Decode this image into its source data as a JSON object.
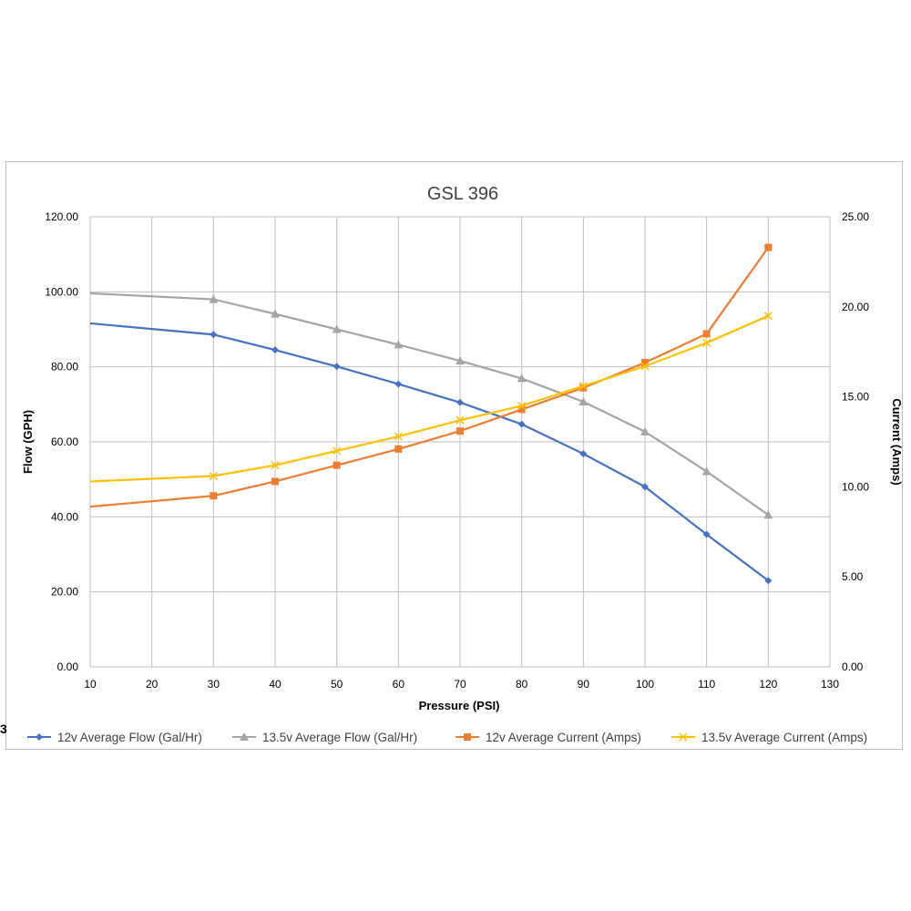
{
  "stray_text": "3",
  "chart_data": {
    "type": "line",
    "title": "GSL 396",
    "xlabel": "Pressure (PSI)",
    "ylabel": "Flow (GPH)",
    "y2label": "Current (Amps)",
    "xlim": [
      10,
      130
    ],
    "ylim": [
      0,
      120
    ],
    "y2lim": [
      0,
      25
    ],
    "x_ticks": [
      "10",
      "20",
      "30",
      "40",
      "50",
      "60",
      "70",
      "80",
      "90",
      "100",
      "110",
      "120",
      "130"
    ],
    "y_ticks": [
      "0.00",
      "20.00",
      "40.00",
      "60.00",
      "80.00",
      "100.00",
      "120.00"
    ],
    "y2_ticks": [
      "0.00",
      "5.00",
      "10.00",
      "15.00",
      "20.00",
      "25.00"
    ],
    "grid": true,
    "legend_position": "bottom",
    "series": [
      {
        "name": "12v Average Flow (Gal/Hr)",
        "axis": "left",
        "color": "#4472c4",
        "marker": "diamond",
        "x": [
          10,
          30,
          40,
          50,
          60,
          70,
          80,
          90,
          100,
          110,
          120
        ],
        "y": [
          91.6,
          88.6,
          84.5,
          80.1,
          75.4,
          70.5,
          64.7,
          56.8,
          48.0,
          35.3,
          23.0
        ]
      },
      {
        "name": "13.5v Average Flow (Gal/Hr)",
        "axis": "left",
        "color": "#a5a5a5",
        "marker": "triangle",
        "x": [
          10,
          30,
          40,
          50,
          60,
          70,
          80,
          90,
          100,
          110,
          120
        ],
        "y": [
          99.6,
          98.0,
          94.1,
          90.0,
          85.9,
          81.6,
          76.9,
          70.7,
          62.7,
          52.1,
          40.5
        ]
      },
      {
        "name": "12v Average Current (Amps)",
        "axis": "right",
        "color": "#ed7d31",
        "marker": "square",
        "x": [
          10,
          30,
          40,
          50,
          60,
          70,
          80,
          90,
          100,
          110,
          120
        ],
        "y": [
          8.9,
          9.5,
          10.3,
          11.2,
          12.1,
          13.1,
          14.3,
          15.5,
          16.9,
          18.5,
          23.3
        ]
      },
      {
        "name": "13.5v Average Current (Amps)",
        "axis": "right",
        "color": "#ffc000",
        "marker": "x",
        "x": [
          10,
          30,
          40,
          50,
          60,
          70,
          80,
          90,
          100,
          110,
          120
        ],
        "y": [
          10.3,
          10.6,
          11.2,
          12.0,
          12.8,
          13.7,
          14.5,
          15.6,
          16.7,
          18.0,
          19.5
        ]
      }
    ]
  }
}
